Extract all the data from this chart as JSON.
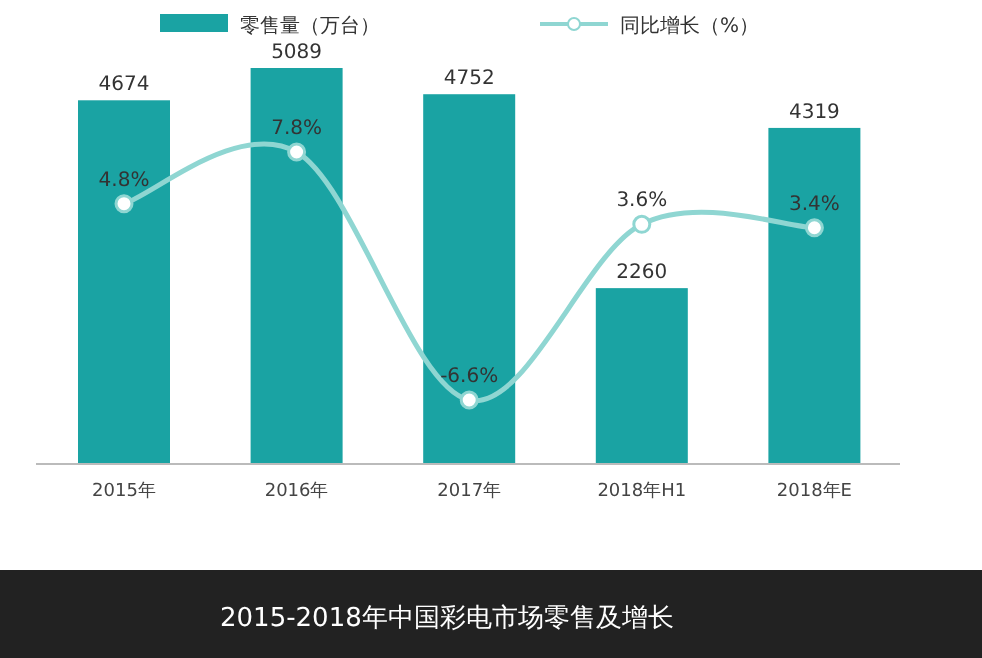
{
  "chart_data": {
    "type": "bar",
    "title": "2015-2018年中国彩电市场零售及增长",
    "categories": [
      "2015年",
      "2016年",
      "2017年",
      "2018年H1",
      "2018年E"
    ],
    "series": [
      {
        "name": "零售量（万台）",
        "color": "#1aa3a3",
        "values": [
          4674,
          5089,
          4752,
          2260,
          4319
        ],
        "value_labels": [
          "4674",
          "5089",
          "4752",
          "2260",
          "4319"
        ]
      },
      {
        "name": "同比增长（%）",
        "type": "line",
        "axis": "y2",
        "color": "#8fd6d2",
        "marker": "circle",
        "values": [
          4.8,
          7.8,
          -6.6,
          3.6,
          3.4
        ],
        "value_labels": [
          "4.8%",
          "7.8%",
          "-6.6%",
          "3.6%",
          "3.4%"
        ]
      }
    ],
    "legend": "top"
  }
}
